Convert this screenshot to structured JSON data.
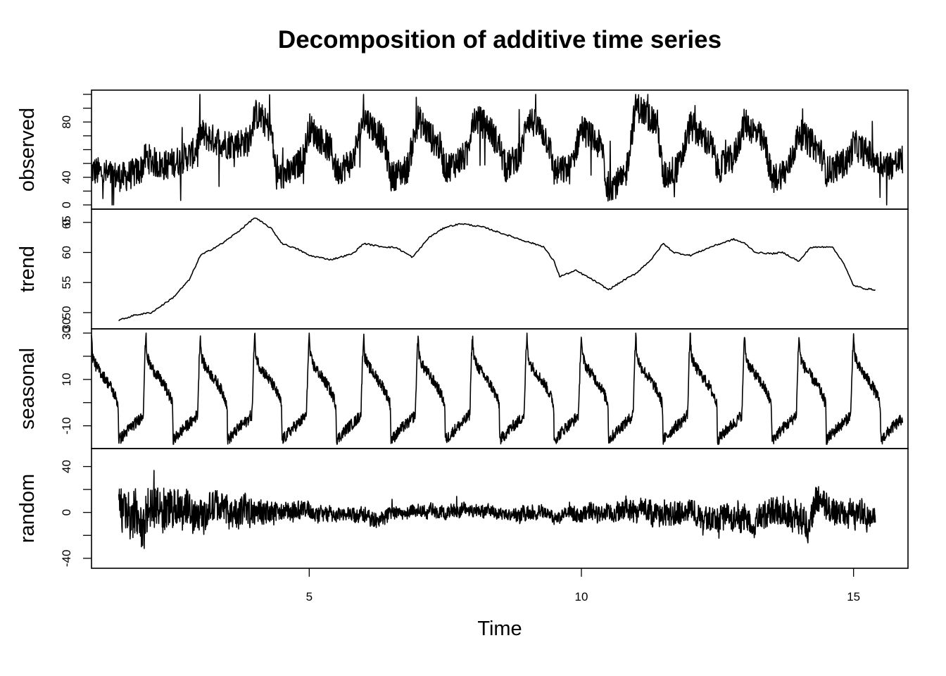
{
  "chart_data": {
    "type": "line",
    "title": "Decomposition of additive time series",
    "xlabel": "Time",
    "xlim": [
      1,
      16
    ],
    "x_ticks": [
      {
        "value": 5,
        "label": "5"
      },
      {
        "value": 10,
        "label": "10"
      },
      {
        "value": 15,
        "label": "15"
      }
    ],
    "panels": [
      {
        "name": "observed",
        "ylabel": "observed",
        "ylim": [
          20,
          100
        ],
        "y_ticks": [
          20,
          30,
          40,
          50,
          60,
          70,
          80,
          90,
          100
        ],
        "y_tick_labels": [
          {
            "value": 20,
            "label": "0"
          },
          {
            "value": 40,
            "label": "40"
          },
          {
            "value": 80,
            "label": "80"
          }
        ],
        "x_start": 1.0,
        "x_end": 15.9,
        "points": [
          [
            1.0,
            45
          ],
          [
            1.3,
            42
          ],
          [
            1.6,
            40
          ],
          [
            1.9,
            45
          ],
          [
            2.0,
            55
          ],
          [
            2.1,
            52
          ],
          [
            2.3,
            48
          ],
          [
            2.6,
            52
          ],
          [
            2.9,
            58
          ],
          [
            3.0,
            72
          ],
          [
            3.2,
            68
          ],
          [
            3.5,
            64
          ],
          [
            3.9,
            66
          ],
          [
            4.0,
            86
          ],
          [
            4.1,
            84
          ],
          [
            4.3,
            74
          ],
          [
            4.4,
            40
          ],
          [
            4.7,
            44
          ],
          [
            4.9,
            55
          ],
          [
            5.0,
            76
          ],
          [
            5.2,
            68
          ],
          [
            5.4,
            60
          ],
          [
            5.5,
            44
          ],
          [
            5.8,
            52
          ],
          [
            6.0,
            84
          ],
          [
            6.3,
            70
          ],
          [
            6.4,
            62
          ],
          [
            6.5,
            40
          ],
          [
            6.8,
            46
          ],
          [
            7.0,
            82
          ],
          [
            7.3,
            66
          ],
          [
            7.4,
            62
          ],
          [
            7.5,
            46
          ],
          [
            7.9,
            56
          ],
          [
            8.0,
            84
          ],
          [
            8.3,
            76
          ],
          [
            8.5,
            62
          ],
          [
            8.6,
            46
          ],
          [
            8.9,
            58
          ],
          [
            9.0,
            84
          ],
          [
            9.3,
            72
          ],
          [
            9.4,
            65
          ],
          [
            9.5,
            44
          ],
          [
            9.8,
            46
          ],
          [
            10.0,
            76
          ],
          [
            10.3,
            64
          ],
          [
            10.4,
            60
          ],
          [
            10.45,
            33
          ],
          [
            10.8,
            38
          ],
          [
            11.0,
            92
          ],
          [
            11.3,
            82
          ],
          [
            11.4,
            78
          ],
          [
            11.5,
            40
          ],
          [
            11.8,
            48
          ],
          [
            12.0,
            78
          ],
          [
            12.3,
            66
          ],
          [
            12.4,
            62
          ],
          [
            12.5,
            46
          ],
          [
            12.8,
            54
          ],
          [
            13.0,
            80
          ],
          [
            13.3,
            68
          ],
          [
            13.4,
            60
          ],
          [
            13.5,
            38
          ],
          [
            13.8,
            46
          ],
          [
            14.0,
            72
          ],
          [
            14.3,
            62
          ],
          [
            14.4,
            58
          ],
          [
            14.5,
            44
          ],
          [
            14.9,
            52
          ],
          [
            15.0,
            64
          ],
          [
            15.3,
            56
          ],
          [
            15.6,
            48
          ],
          [
            15.9,
            52
          ]
        ]
      },
      {
        "name": "trend",
        "ylabel": "trend",
        "ylim": [
          48,
          66.5
        ],
        "y_ticks": [
          50,
          55,
          60,
          65
        ],
        "y_tick_labels": [
          {
            "value": 48,
            "label": "30"
          },
          {
            "value": 50,
            "label": "50"
          },
          {
            "value": 55,
            "label": "55"
          },
          {
            "value": 60,
            "label": "60"
          },
          {
            "value": 65,
            "label": "65"
          },
          {
            "value": 65,
            "label": "0"
          }
        ],
        "x_start": 1.5,
        "x_end": 15.4,
        "points": [
          [
            1.5,
            48.7
          ],
          [
            1.8,
            49.6
          ],
          [
            2.1,
            50.0
          ],
          [
            2.5,
            52.5
          ],
          [
            2.8,
            55.5
          ],
          [
            3.0,
            59.5
          ],
          [
            3.4,
            61.5
          ],
          [
            3.7,
            63.5
          ],
          [
            4.0,
            65.8
          ],
          [
            4.3,
            64.0
          ],
          [
            4.5,
            61.5
          ],
          [
            4.8,
            60.5
          ],
          [
            5.0,
            59.5
          ],
          [
            5.4,
            58.8
          ],
          [
            5.8,
            59.8
          ],
          [
            6.0,
            61.5
          ],
          [
            6.3,
            61.0
          ],
          [
            6.6,
            60.8
          ],
          [
            6.9,
            59.2
          ],
          [
            7.2,
            62.5
          ],
          [
            7.5,
            64.2
          ],
          [
            7.8,
            64.8
          ],
          [
            8.2,
            64.2
          ],
          [
            8.6,
            63.0
          ],
          [
            9.0,
            61.8
          ],
          [
            9.3,
            61.0
          ],
          [
            9.5,
            58.5
          ],
          [
            9.6,
            56.0
          ],
          [
            9.9,
            57.0
          ],
          [
            10.2,
            55.5
          ],
          [
            10.5,
            53.8
          ],
          [
            10.8,
            55.5
          ],
          [
            11.0,
            56.5
          ],
          [
            11.3,
            59.0
          ],
          [
            11.5,
            61.5
          ],
          [
            11.7,
            60.0
          ],
          [
            12.0,
            59.5
          ],
          [
            12.4,
            61.0
          ],
          [
            12.8,
            62.2
          ],
          [
            13.0,
            61.5
          ],
          [
            13.2,
            60.0
          ],
          [
            13.5,
            59.8
          ],
          [
            13.7,
            60.0
          ],
          [
            14.0,
            58.5
          ],
          [
            14.2,
            60.8
          ],
          [
            14.6,
            61.0
          ],
          [
            14.8,
            58.5
          ],
          [
            15.0,
            54.5
          ],
          [
            15.2,
            54.0
          ],
          [
            15.4,
            53.8
          ]
        ]
      },
      {
        "name": "seasonal",
        "ylabel": "seasonal",
        "ylim": [
          -18,
          30
        ],
        "y_ticks": [
          -10,
          0,
          10,
          20,
          30
        ],
        "y_tick_labels": [
          {
            "value": -10,
            "label": "-10"
          },
          {
            "value": 10,
            "label": "10"
          },
          {
            "value": 30,
            "label": "30"
          }
        ],
        "x_start": 1.0,
        "x_end": 15.9,
        "cycle_profile": [
          [
            0.0,
            29
          ],
          [
            0.02,
            20
          ],
          [
            0.08,
            16
          ],
          [
            0.2,
            12
          ],
          [
            0.35,
            7
          ],
          [
            0.45,
            2
          ],
          [
            0.49,
            -1
          ],
          [
            0.5,
            -16
          ],
          [
            0.55,
            -15
          ],
          [
            0.7,
            -11
          ],
          [
            0.85,
            -8
          ],
          [
            0.95,
            -5
          ],
          [
            0.98,
            20
          ],
          [
            1.0,
            29
          ]
        ]
      },
      {
        "name": "random",
        "ylabel": "random",
        "ylim": [
          -45,
          52
        ],
        "y_ticks": [
          -40,
          -20,
          0,
          20,
          40
        ],
        "y_tick_labels": [
          {
            "value": -40,
            "label": "-40"
          },
          {
            "value": 0,
            "label": "0"
          },
          {
            "value": 40,
            "label": "40"
          }
        ],
        "x_start": 1.5,
        "x_end": 15.4,
        "envelope": [
          [
            1.5,
            22
          ],
          [
            2.0,
            25
          ],
          [
            2.5,
            20
          ],
          [
            3.0,
            18
          ],
          [
            3.5,
            16
          ],
          [
            4.0,
            15
          ],
          [
            4.5,
            10
          ],
          [
            5.0,
            9
          ],
          [
            5.5,
            8
          ],
          [
            6.0,
            9
          ],
          [
            6.5,
            7
          ],
          [
            7.0,
            7
          ],
          [
            7.5,
            7
          ],
          [
            8.0,
            7
          ],
          [
            8.5,
            6
          ],
          [
            9.0,
            8
          ],
          [
            9.5,
            6
          ],
          [
            10.0,
            8
          ],
          [
            10.5,
            10
          ],
          [
            11.0,
            12
          ],
          [
            11.5,
            13
          ],
          [
            12.0,
            13
          ],
          [
            12.5,
            14
          ],
          [
            13.0,
            15
          ],
          [
            13.5,
            15
          ],
          [
            14.0,
            16
          ],
          [
            14.5,
            16
          ],
          [
            15.0,
            14
          ],
          [
            15.4,
            12
          ]
        ]
      }
    ]
  }
}
